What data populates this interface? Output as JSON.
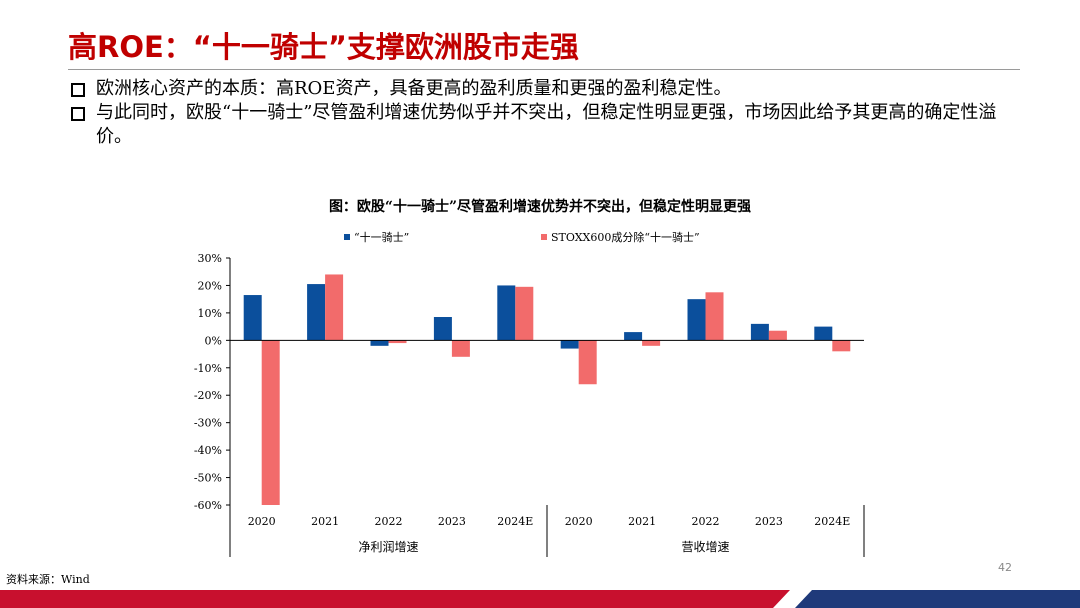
{
  "slide": {
    "title": "高ROE：“十一骑士”支撑欧洲股市走强",
    "bullets": [
      "欧洲核心资产的本质：高ROE资产，具备更高的盈利质量和更强的盈利稳定性。",
      "与此同时，欧股“十一骑士”尽管盈利增速优势似乎并不突出，但稳定性明显更强，市场因此给予其更高的确定性溢价。"
    ],
    "source": "资料来源：Wind",
    "page_number": "42"
  },
  "colors": {
    "title": "#c00000",
    "series_1": "#0b4f9c",
    "series_2": "#f26b6b",
    "footer_red": "#c8102e",
    "footer_blue": "#1f3a7a"
  },
  "chart_data": {
    "type": "bar",
    "title": "图：欧股“十一骑士”尽管盈利增速优势并不突出，但稳定性明显更强",
    "categories": [
      "2020",
      "2021",
      "2022",
      "2023",
      "2024E",
      "2020",
      "2021",
      "2022",
      "2023",
      "2024E"
    ],
    "groups": [
      {
        "label": "净利润增速",
        "categories": [
          "2020",
          "2021",
          "2022",
          "2023",
          "2024E"
        ]
      },
      {
        "label": "营收增速",
        "categories": [
          "2020",
          "2021",
          "2022",
          "2023",
          "2024E"
        ]
      }
    ],
    "series": [
      {
        "name": "“十一骑士”",
        "values": [
          16.5,
          20.5,
          -2,
          8.5,
          20,
          -3,
          3,
          15,
          6,
          5
        ]
      },
      {
        "name": "STOXX600成分除“十一骑士”",
        "values": [
          -60,
          24,
          -1,
          -6,
          19.5,
          -16,
          -2,
          17.5,
          3.5,
          -4
        ]
      }
    ],
    "ylim": [
      -60,
      30
    ],
    "yticks": [
      30,
      20,
      10,
      0,
      -10,
      -20,
      -30,
      -40,
      -50,
      -60
    ],
    "ytick_labels": [
      "30%",
      "20%",
      "10%",
      "0%",
      "-10%",
      "-20%",
      "-30%",
      "-40%",
      "-50%",
      "-60%"
    ],
    "legend_position": "top",
    "grid": false,
    "xlabel": "",
    "ylabel": ""
  }
}
